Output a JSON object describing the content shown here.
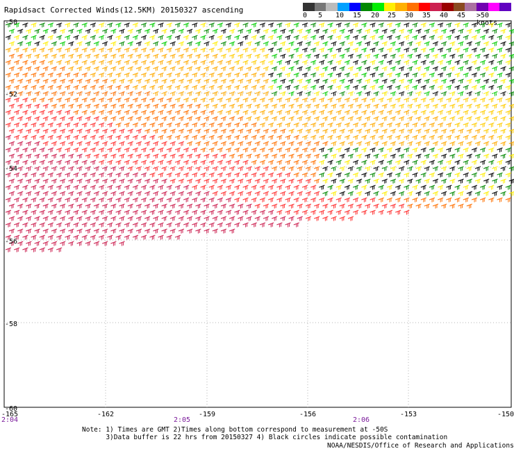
{
  "title": "Rapidsact Corrected Winds(12.5KM) 20150327 ascending",
  "legend": {
    "colors": [
      "#333333",
      "#777777",
      "#bbbbbb",
      "#00a0ff",
      "#0000ff",
      "#008800",
      "#00ee00",
      "#ffee00",
      "#ffb000",
      "#ff7000",
      "#ff0000",
      "#cc2050",
      "#990000",
      "#8a4a20",
      "#aa70a0",
      "#7000b0",
      "#ff00ff",
      "#6000c0"
    ],
    "labels": [
      "0",
      "5",
      "10",
      "15",
      "20",
      "25",
      "30",
      "35",
      "40",
      "45",
      ">50 knots"
    ]
  },
  "map": {
    "lat_labels": [
      "-50",
      "-52",
      "-54",
      "-56",
      "-58",
      "-60"
    ],
    "lon_labels": [
      "-165",
      "-162",
      "-159",
      "-156",
      "-153",
      "-150"
    ],
    "time_labels": [
      "2:04",
      "2:05",
      "2:06"
    ]
  },
  "footer": {
    "note": "Note: 1) Times are GMT 2)Times along bottom correspond to measurement at -50S\n      3)Data buffer is 22 hrs from 20150327 4) Black circles indicate possible contamination",
    "credit": "NOAA/NESDIS/Office of Research and Applications"
  }
}
